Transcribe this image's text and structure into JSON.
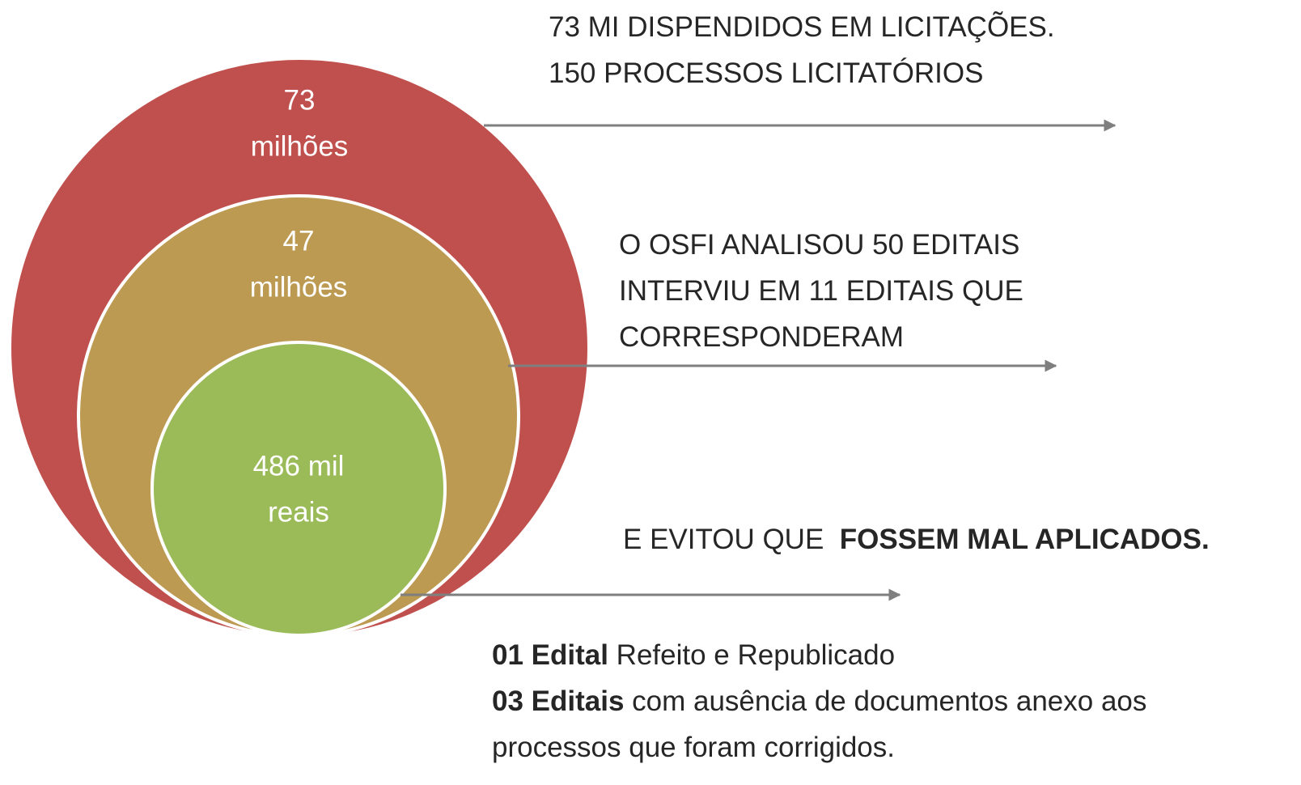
{
  "circles": [
    {
      "lines": [
        "73",
        "milhões"
      ],
      "color": "#c0504d"
    },
    {
      "lines": [
        "47",
        "milhões"
      ],
      "color": "#bd9a52"
    },
    {
      "lines": [
        "486 mil",
        "reais"
      ],
      "color": "#9bbb59"
    }
  ],
  "notes": [
    {
      "lines": [
        [
          {
            "text": "73 MI DISPENDIDOS EM LICITAÇÕES."
          }
        ],
        [
          {
            "text": "150 PROCESSOS LICITATÓRIOS"
          }
        ]
      ]
    },
    {
      "lines": [
        [
          {
            "text": "O OSFI ANALISOU 50 EDITAIS"
          }
        ],
        [
          {
            "text": "INTERVIU EM 11 EDITAIS QUE"
          }
        ],
        [
          {
            "text": "CORRESPONDERAM"
          }
        ]
      ]
    },
    {
      "lines": [
        [
          {
            "text": "E EVITOU QUE  "
          },
          {
            "text": "FOSSEM MAL APLICADOS.",
            "bold": true
          }
        ]
      ]
    },
    {
      "lines": [
        [
          {
            "text": "01 Edital",
            "bold": true
          },
          {
            "text": " Refeito e Republicado"
          }
        ],
        [
          {
            "text": "03 Editais",
            "bold": true
          },
          {
            "text": " com ausência de documentos anexo aos"
          }
        ],
        [
          {
            "text": "processos que foram corrigidos."
          }
        ]
      ]
    }
  ]
}
